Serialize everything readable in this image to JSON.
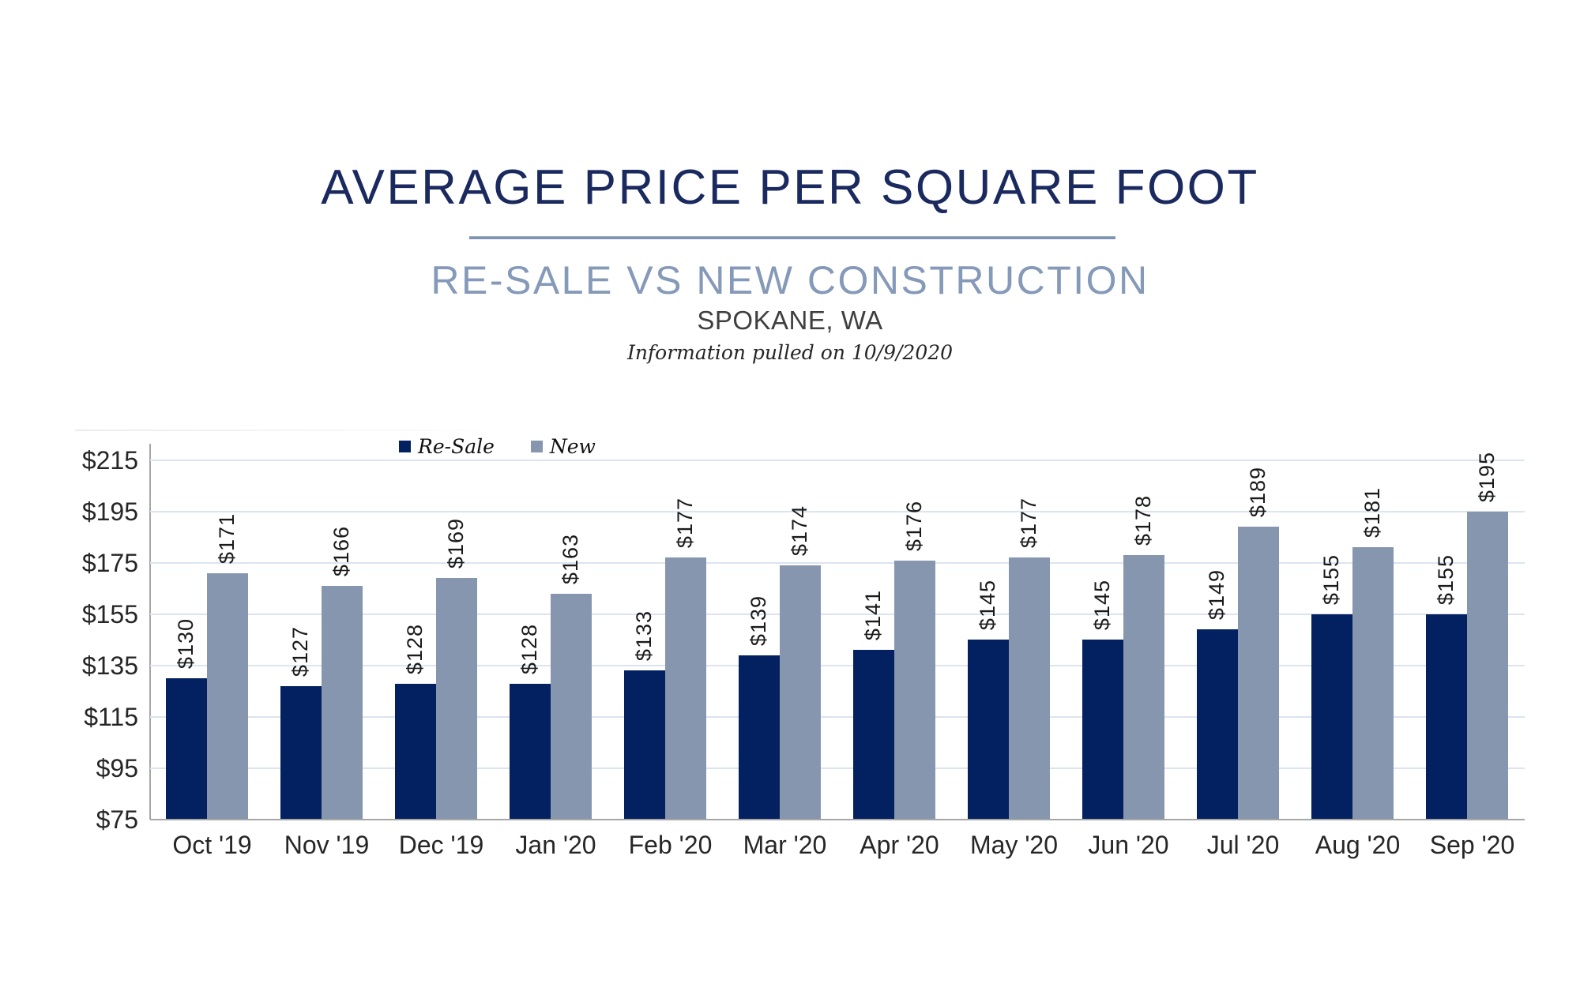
{
  "header": {
    "title": "AVERAGE PRICE PER SQUARE FOOT",
    "subtitle": "RE-SALE VS NEW CONSTRUCTION",
    "location": "SPOKANE, WA",
    "note": "Information pulled on 10/9/2020"
  },
  "colors": {
    "resale_bar": "#032160",
    "new_bar": "#8796af",
    "title_text": "#1b2a5e",
    "subtitle_text": "#8599b8",
    "divider": "#7e92b1",
    "gridline": "#dbe4f0",
    "axis_line": "#a6a6a6",
    "label_text": "#1a1a1a"
  },
  "chart_data": {
    "type": "bar",
    "title": "Average price per square foot, Re-Sale vs New Construction, Spokane WA",
    "categories": [
      "Oct '19",
      "Nov '19",
      "Dec '19",
      "Jan '20",
      "Feb '20",
      "Mar '20",
      "Apr '20",
      "May '20",
      "Jun '20",
      "Jul '20",
      "Aug '20",
      "Sep '20"
    ],
    "series": [
      {
        "name": "Re-Sale",
        "color": "#032160",
        "values": [
          130,
          127,
          128,
          128,
          133,
          139,
          141,
          145,
          145,
          149,
          155,
          155
        ],
        "data_labels": [
          "$130",
          "$127",
          "$128",
          "$128",
          "$133",
          "$139",
          "$141",
          "$145",
          "$145",
          "$149",
          "$155",
          "$155"
        ]
      },
      {
        "name": "New",
        "color": "#8796af",
        "values": [
          171,
          166,
          169,
          163,
          177,
          174,
          176,
          177,
          178,
          189,
          181,
          195
        ],
        "data_labels": [
          "$171",
          "$166",
          "$169",
          "$163",
          "$177",
          "$174",
          "$176",
          "$177",
          "$178",
          "$189",
          "$181",
          "$195"
        ]
      }
    ],
    "xlabel": "",
    "ylabel": "",
    "ylim": [
      75,
      215
    ],
    "ytick_step": 20,
    "y_tick_labels": [
      "$215",
      "$195",
      "$175",
      "$155",
      "$135",
      "$115",
      "$95",
      "$75"
    ],
    "grid": true,
    "legend_position": "top"
  }
}
